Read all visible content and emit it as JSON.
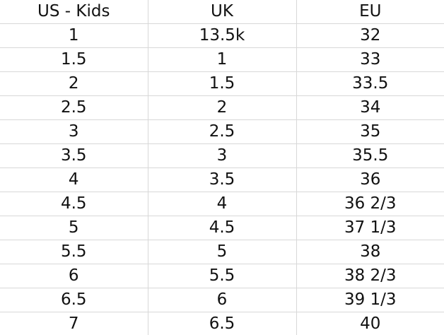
{
  "table": {
    "headers": [
      "US - Kids",
      "UK",
      "EU"
    ],
    "rows": [
      [
        "1",
        "13.5k",
        "32"
      ],
      [
        "1.5",
        "1",
        "33"
      ],
      [
        "2",
        "1.5",
        "33.5"
      ],
      [
        "2.5",
        "2",
        "34"
      ],
      [
        "3",
        "2.5",
        "35"
      ],
      [
        "3.5",
        "3",
        "35.5"
      ],
      [
        "4",
        "3.5",
        "36"
      ],
      [
        "4.5",
        "4",
        "36 2/3"
      ],
      [
        "5",
        "4.5",
        "37 1/3"
      ],
      [
        "5.5",
        "5",
        "38"
      ],
      [
        "6",
        "5.5",
        "38 2/3"
      ],
      [
        "6.5",
        "6",
        "39 1/3"
      ],
      [
        "7",
        "6.5",
        "40"
      ]
    ]
  },
  "colors": {
    "text": "#111111",
    "grid": "#d8d8d8",
    "background": "#ffffff"
  }
}
